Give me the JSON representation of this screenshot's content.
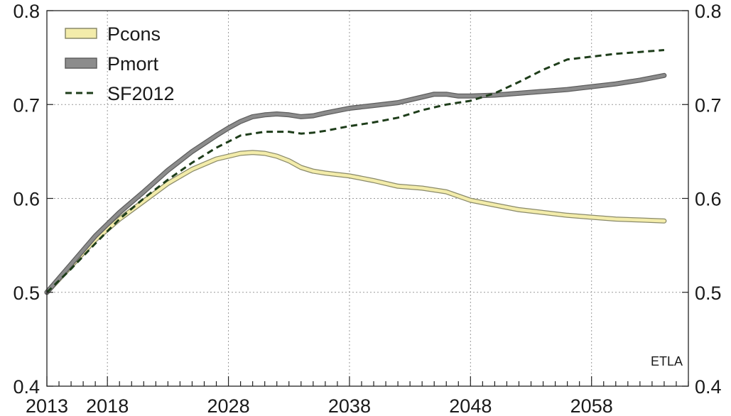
{
  "chart_data": {
    "type": "line",
    "source_note": "ETLA",
    "x_range": [
      2013,
      2066
    ],
    "ylim": [
      0.4,
      0.8
    ],
    "x_tick_labels": [
      "2013",
      "2018",
      "2028",
      "2038",
      "2048",
      "2058"
    ],
    "x_tick_values": [
      2013,
      2018,
      2028,
      2038,
      2048,
      2058
    ],
    "y_ticks": [
      0.4,
      0.5,
      0.6,
      0.7,
      0.8
    ],
    "y_tick_labels": [
      "0.4",
      "0.5",
      "0.6",
      "0.7",
      "0.8"
    ],
    "right_axis_mirrors_left": true,
    "grid": true,
    "legend_position": "top-left",
    "series": [
      {
        "name": "Pcons",
        "style": "thick-outlined",
        "color": "#f3ecaa",
        "outline_color": "#8a8a6a",
        "x": [
          2013,
          2015,
          2017,
          2019,
          2021,
          2023,
          2025,
          2027,
          2029,
          2030,
          2031,
          2032,
          2033,
          2034,
          2035,
          2036,
          2038,
          2040,
          2042,
          2044,
          2046,
          2048,
          2050,
          2052,
          2054,
          2056,
          2058,
          2060,
          2062,
          2064
        ],
        "y": [
          0.5,
          0.528,
          0.556,
          0.578,
          0.597,
          0.616,
          0.631,
          0.642,
          0.648,
          0.649,
          0.648,
          0.645,
          0.64,
          0.633,
          0.629,
          0.627,
          0.624,
          0.619,
          0.613,
          0.611,
          0.607,
          0.598,
          0.593,
          0.588,
          0.585,
          0.582,
          0.58,
          0.578,
          0.577,
          0.576
        ]
      },
      {
        "name": "Pmort",
        "style": "thick-outlined",
        "color": "#8c8c8c",
        "outline_color": "#5e5e5e",
        "x": [
          2013,
          2015,
          2017,
          2019,
          2021,
          2023,
          2025,
          2027,
          2028,
          2029,
          2030,
          2031,
          2032,
          2033,
          2034,
          2035,
          2036,
          2038,
          2040,
          2042,
          2044,
          2045,
          2046,
          2047,
          2048,
          2050,
          2052,
          2054,
          2056,
          2058,
          2060,
          2062,
          2064
        ],
        "y": [
          0.5,
          0.53,
          0.56,
          0.585,
          0.607,
          0.63,
          0.65,
          0.667,
          0.675,
          0.682,
          0.687,
          0.689,
          0.69,
          0.689,
          0.687,
          0.688,
          0.691,
          0.696,
          0.699,
          0.702,
          0.708,
          0.711,
          0.711,
          0.709,
          0.709,
          0.71,
          0.712,
          0.714,
          0.716,
          0.719,
          0.722,
          0.726,
          0.731
        ]
      },
      {
        "name": "SF2012",
        "style": "dashed",
        "color": "#1e3d1a",
        "x": [
          2013,
          2015,
          2017,
          2019,
          2021,
          2023,
          2025,
          2027,
          2029,
          2031,
          2033,
          2034,
          2035,
          2036,
          2038,
          2040,
          2042,
          2044,
          2046,
          2048,
          2050,
          2052,
          2054,
          2056,
          2058,
          2060,
          2062,
          2064
        ],
        "y": [
          0.5,
          0.525,
          0.552,
          0.578,
          0.6,
          0.62,
          0.638,
          0.654,
          0.667,
          0.671,
          0.671,
          0.669,
          0.67,
          0.672,
          0.677,
          0.681,
          0.686,
          0.694,
          0.7,
          0.704,
          0.712,
          0.724,
          0.737,
          0.748,
          0.751,
          0.754,
          0.756,
          0.758
        ]
      }
    ]
  }
}
